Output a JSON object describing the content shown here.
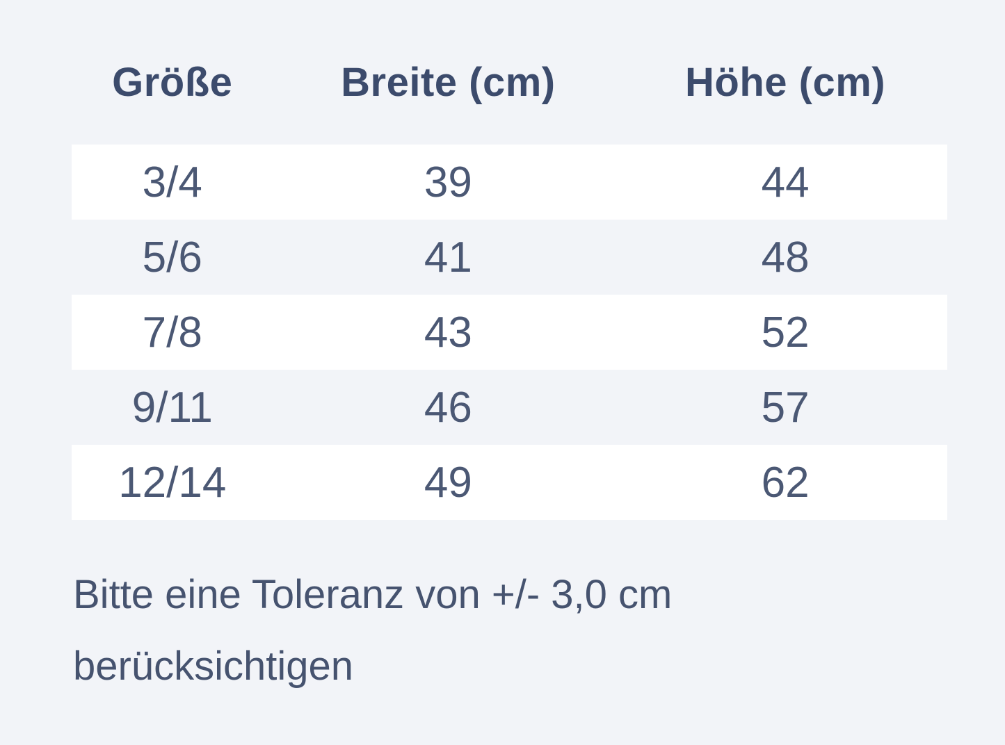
{
  "page": {
    "background_color": "#f2f4f8",
    "stripe_color": "#ffffff",
    "header_text_color": "#3c4b6c",
    "body_text_color": "#4b5874"
  },
  "chart_data": {
    "type": "table",
    "columns": [
      "Größe",
      "Breite (cm)",
      "Höhe (cm)"
    ],
    "rows": [
      [
        "3/4",
        "39",
        "44"
      ],
      [
        "5/6",
        "41",
        "48"
      ],
      [
        "7/8",
        "43",
        "52"
      ],
      [
        "9/11",
        "46",
        "57"
      ],
      [
        "12/14",
        "49",
        "62"
      ]
    ],
    "note": "Bitte eine Toleranz von +/- 3,0 cm berücksichtigen",
    "layout": {
      "striped_rows": "odd rows white on light blue-gray page background",
      "legend": "none",
      "grid": "off"
    }
  },
  "note": {
    "lines": [
      "Bitte eine Toleranz von +/- 3,0 cm",
      "berücksichtigen"
    ]
  }
}
